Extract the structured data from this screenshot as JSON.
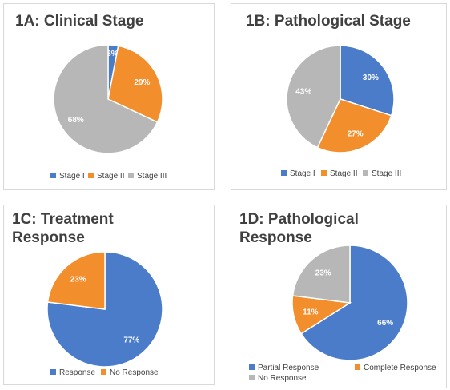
{
  "colors": {
    "blue": "#4a7cc9",
    "orange": "#f28e2b",
    "gray": "#b7b7b7"
  },
  "chart_data": [
    {
      "type": "pie",
      "title": "1A: Clinical Stage",
      "start": "top",
      "slices": [
        {
          "label": "Stage I",
          "value": 3,
          "text": "3%",
          "color": "#4a7cc9"
        },
        {
          "label": "Stage II",
          "value": 29,
          "text": "29%",
          "color": "#f28e2b"
        },
        {
          "label": "Stage III",
          "value": 68,
          "text": "68%",
          "color": "#b7b7b7"
        }
      ],
      "legend_position": "bottom"
    },
    {
      "type": "pie",
      "title": "1B: Pathological Stage",
      "start": "top",
      "slices": [
        {
          "label": "Stage I",
          "value": 30,
          "text": "30%",
          "color": "#4a7cc9"
        },
        {
          "label": "Stage II",
          "value": 27,
          "text": "27%",
          "color": "#f28e2b"
        },
        {
          "label": "Stage III",
          "value": 43,
          "text": "43%",
          "color": "#b7b7b7"
        }
      ],
      "legend_position": "bottom"
    },
    {
      "type": "pie",
      "title": "1C: Treatment Response",
      "start": "top",
      "slices": [
        {
          "label": "Response",
          "value": 77,
          "text": "77%",
          "color": "#4a7cc9"
        },
        {
          "label": "No Response",
          "value": 23,
          "text": "23%",
          "color": "#f28e2b"
        }
      ],
      "legend_position": "bottom"
    },
    {
      "type": "pie",
      "title": "1D: Pathological Response",
      "start": "top",
      "slices": [
        {
          "label": "Partial Response",
          "value": 66,
          "text": "66%",
          "color": "#4a7cc9"
        },
        {
          "label": "Complete Response",
          "value": 11,
          "text": "11%",
          "color": "#f28e2b"
        },
        {
          "label": "No Response",
          "value": 23,
          "text": "23%",
          "color": "#b7b7b7"
        }
      ],
      "legend_position": "bottom"
    }
  ]
}
